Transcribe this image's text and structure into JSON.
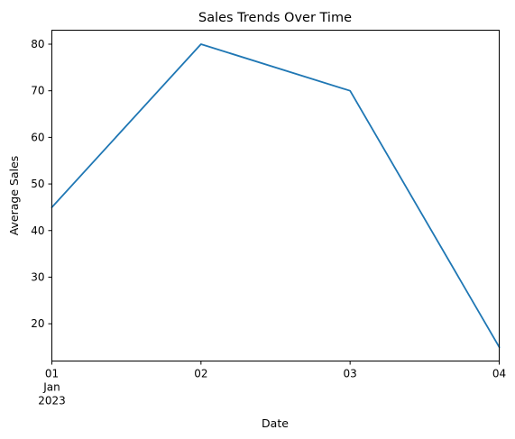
{
  "chart_data": {
    "type": "line",
    "title": "Sales Trends Over Time",
    "xlabel": "Date",
    "ylabel": "Average Sales",
    "x": [
      "2023-01-01",
      "2023-01-02",
      "2023-01-03",
      "2023-01-04"
    ],
    "x_tick_labels": [
      "01",
      "02",
      "03",
      "04"
    ],
    "x_tick_sublabel": [
      "Jan",
      "2023"
    ],
    "series": [
      {
        "values": [
          45,
          80,
          70,
          15
        ],
        "color": "#1f77b4"
      }
    ],
    "yticks": [
      20,
      30,
      40,
      50,
      60,
      70,
      80
    ],
    "ylim": [
      12,
      83
    ],
    "grid": false,
    "legend": "none"
  }
}
